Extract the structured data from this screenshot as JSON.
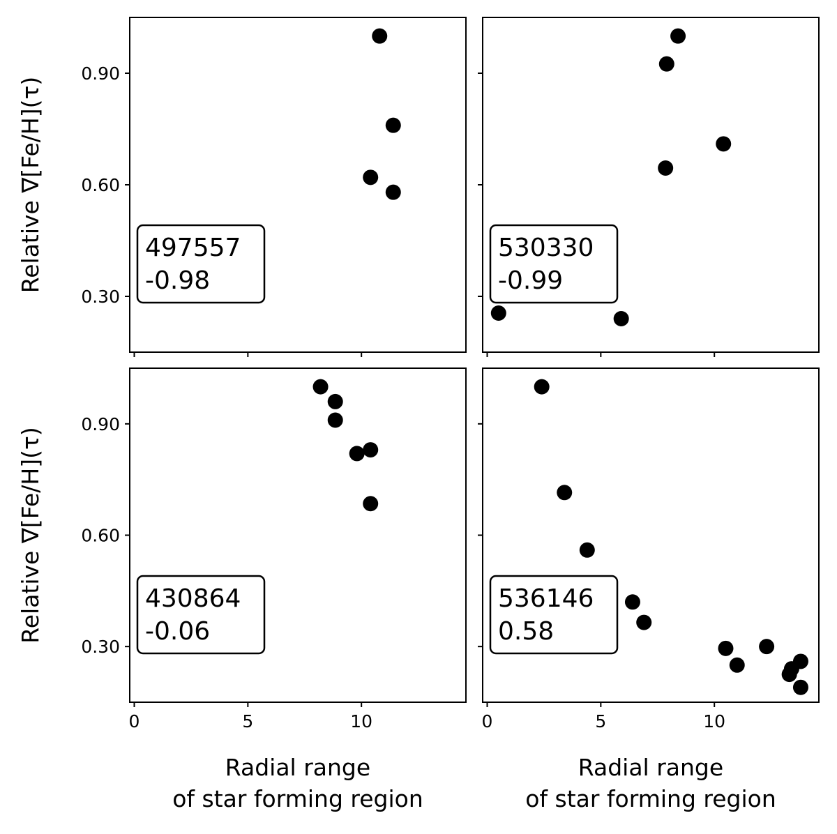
{
  "chart_data": [
    {
      "type": "scatter",
      "panel": "top-left",
      "annotation": {
        "id": "497557",
        "value": "-0.98"
      },
      "xlim": [
        -0.2,
        14.6
      ],
      "ylim": [
        0.15,
        1.05
      ],
      "x": [
        10.8,
        11.4,
        10.4,
        11.4
      ],
      "y": [
        1.0,
        0.76,
        0.62,
        0.58
      ],
      "ylabel": "Relative ∇[Fe/H](τ)",
      "xlabel": "",
      "yticks": [
        "0.30",
        "0.60",
        "0.90"
      ],
      "xticks": []
    },
    {
      "type": "scatter",
      "panel": "top-right",
      "annotation": {
        "id": "530330",
        "value": "-0.99"
      },
      "xlim": [
        -0.2,
        14.6
      ],
      "ylim": [
        0.15,
        1.05
      ],
      "x": [
        8.4,
        7.9,
        10.4,
        7.85,
        0.5,
        5.9
      ],
      "y": [
        1.0,
        0.925,
        0.71,
        0.645,
        0.255,
        0.24
      ],
      "ylabel": "",
      "xlabel": "",
      "yticks": [],
      "xticks": []
    },
    {
      "type": "scatter",
      "panel": "bottom-left",
      "annotation": {
        "id": "430864",
        "value": "-0.06"
      },
      "xlim": [
        -0.2,
        14.6
      ],
      "ylim": [
        0.15,
        1.05
      ],
      "x": [
        8.2,
        8.85,
        8.85,
        9.8,
        10.4,
        10.4
      ],
      "y": [
        1.0,
        0.96,
        0.91,
        0.82,
        0.83,
        0.685
      ],
      "ylabel": "Relative ∇[Fe/H](τ)",
      "xlabel": "Radial range\nof star forming region",
      "xlabel_lines": [
        "Radial range",
        "of star forming region"
      ],
      "yticks": [
        "0.30",
        "0.60",
        "0.90"
      ],
      "xticks": [
        "0",
        "5",
        "10"
      ]
    },
    {
      "type": "scatter",
      "panel": "bottom-right",
      "annotation": {
        "id": "536146",
        "value": "0.58"
      },
      "xlim": [
        -0.2,
        14.6
      ],
      "ylim": [
        0.15,
        1.05
      ],
      "x": [
        2.4,
        3.4,
        4.4,
        6.4,
        6.9,
        10.5,
        11.0,
        12.3,
        13.3,
        13.4,
        13.8,
        13.8
      ],
      "y": [
        1.0,
        0.715,
        0.56,
        0.42,
        0.365,
        0.295,
        0.25,
        0.3,
        0.225,
        0.24,
        0.26,
        0.19
      ],
      "ylabel": "",
      "xlabel": "Radial range\nof star forming region",
      "xlabel_lines": [
        "Radial range",
        "of star forming region"
      ],
      "yticks": [],
      "xticks": [
        "0",
        "5",
        "10"
      ]
    }
  ]
}
